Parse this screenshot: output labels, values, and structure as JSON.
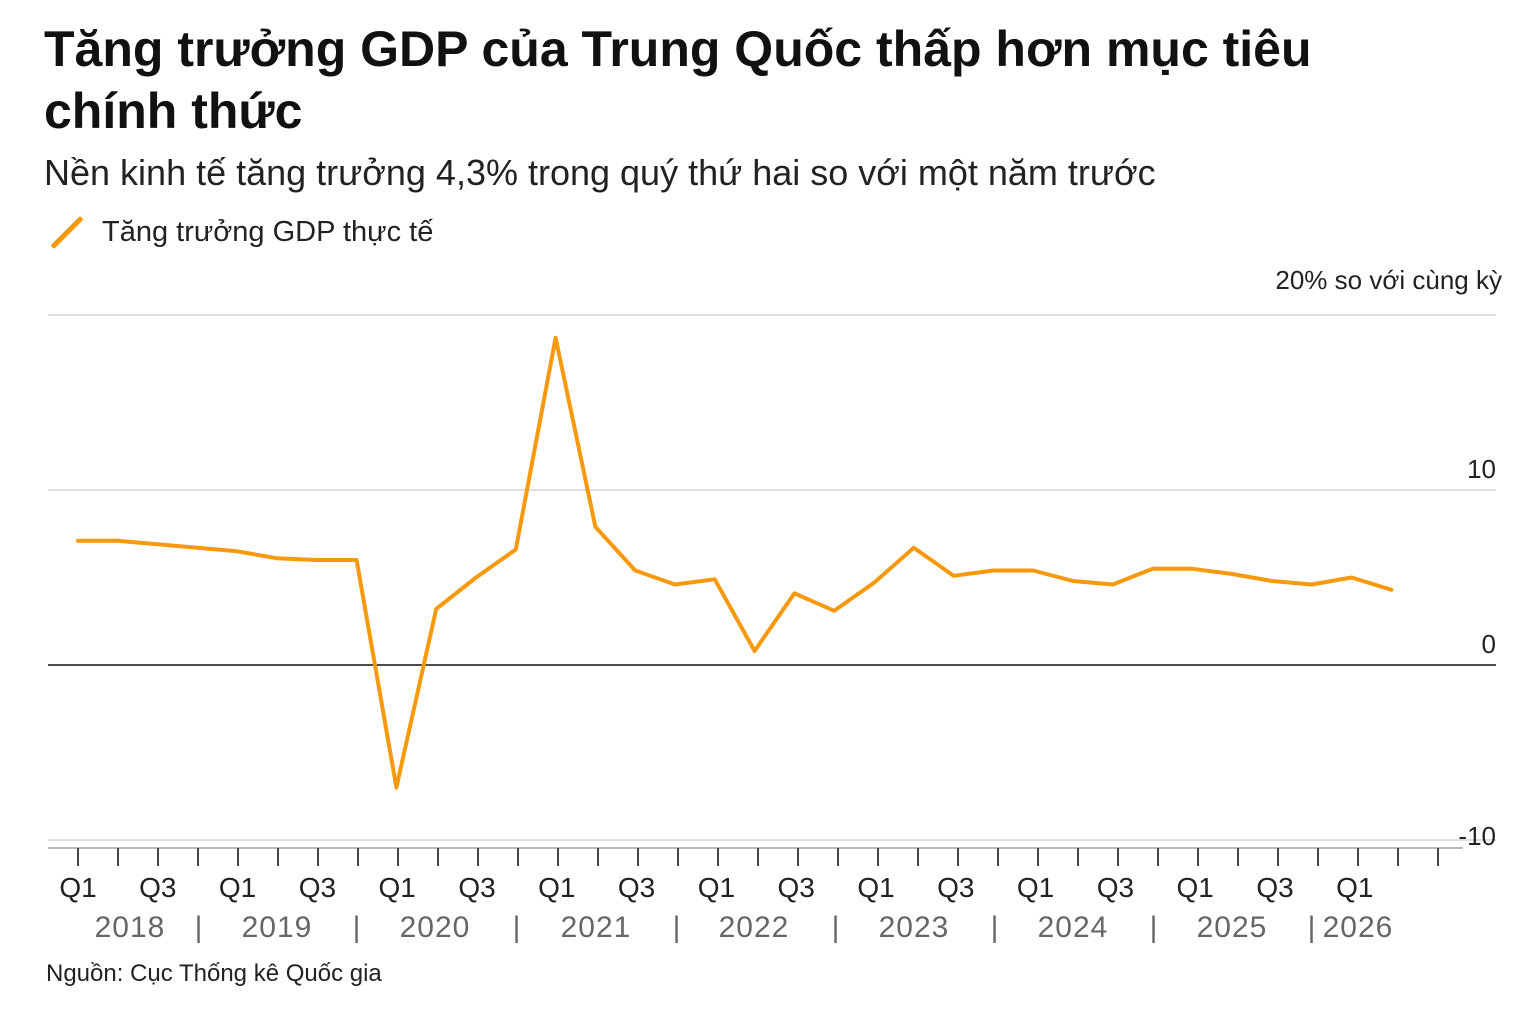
{
  "title": "Tăng trưởng GDP của Trung Quốc thấp hơn mục tiêu chính thức",
  "subtitle": "Nền kinh tế tăng trưởng 4,3% trong quý thứ hai so với một năm trước",
  "legend_label": "Tăng trưởng GDP thực tế",
  "source": "Nguồn: Cục Thống kê Quốc gia",
  "colors": {
    "series": "#f7990d",
    "gridline": "#cccccc",
    "zero_line": "#111111",
    "axis": "#444444"
  },
  "chart_data": {
    "type": "line",
    "ylabel": "20% so với cùng kỳ",
    "ylim": [
      -10.5,
      20
    ],
    "yticks": [
      {
        "value": 20,
        "label": ""
      },
      {
        "value": 10,
        "label": "10"
      },
      {
        "value": 0,
        "label": "0"
      },
      {
        "value": -10,
        "label": "-10"
      }
    ],
    "quarter_labels": [
      "Q1",
      "Q3",
      "Q1",
      "Q3",
      "Q1",
      "Q3",
      "Q1",
      "Q3",
      "Q1",
      "Q3",
      "Q1",
      "Q3",
      "Q1",
      "Q3",
      "Q1",
      "Q3",
      "Q1"
    ],
    "year_labels": [
      "2018",
      "2019",
      "2020",
      "2021",
      "2022",
      "2023",
      "2024",
      "2025",
      "2026"
    ],
    "year_separators": [
      "|",
      "|",
      "|",
      "|",
      "|",
      "|",
      "|",
      "|"
    ],
    "grid": true,
    "series": [
      {
        "name": "Tăng trưởng GDP thực tế",
        "x": [
          "2018 Q1",
          "2018 Q2",
          "2018 Q3",
          "2018 Q4",
          "2019 Q1",
          "2019 Q2",
          "2019 Q3",
          "2019 Q4",
          "2020 Q1",
          "2020 Q2",
          "2020 Q3",
          "2020 Q4",
          "2021 Q1",
          "2021 Q2",
          "2021 Q3",
          "2021 Q4",
          "2022 Q1",
          "2022 Q2",
          "2022 Q3",
          "2022 Q4",
          "2023 Q1",
          "2023 Q2",
          "2023 Q3",
          "2023 Q4",
          "2024 Q1",
          "2024 Q2",
          "2024 Q3",
          "2024 Q4",
          "2025 Q1",
          "2025 Q2",
          "2025 Q3",
          "2025 Q4",
          "2026 Q1",
          "2026 Q2"
        ],
        "values": [
          7.1,
          7.1,
          6.9,
          6.7,
          6.5,
          6.1,
          6.0,
          6.0,
          -7.0,
          3.2,
          5.0,
          6.6,
          18.7,
          7.9,
          5.4,
          4.6,
          4.9,
          0.8,
          4.1,
          3.1,
          4.7,
          6.7,
          5.1,
          5.4,
          5.4,
          4.8,
          4.6,
          5.5,
          5.5,
          5.2,
          4.8,
          4.6,
          5.0,
          4.3
        ]
      }
    ]
  }
}
